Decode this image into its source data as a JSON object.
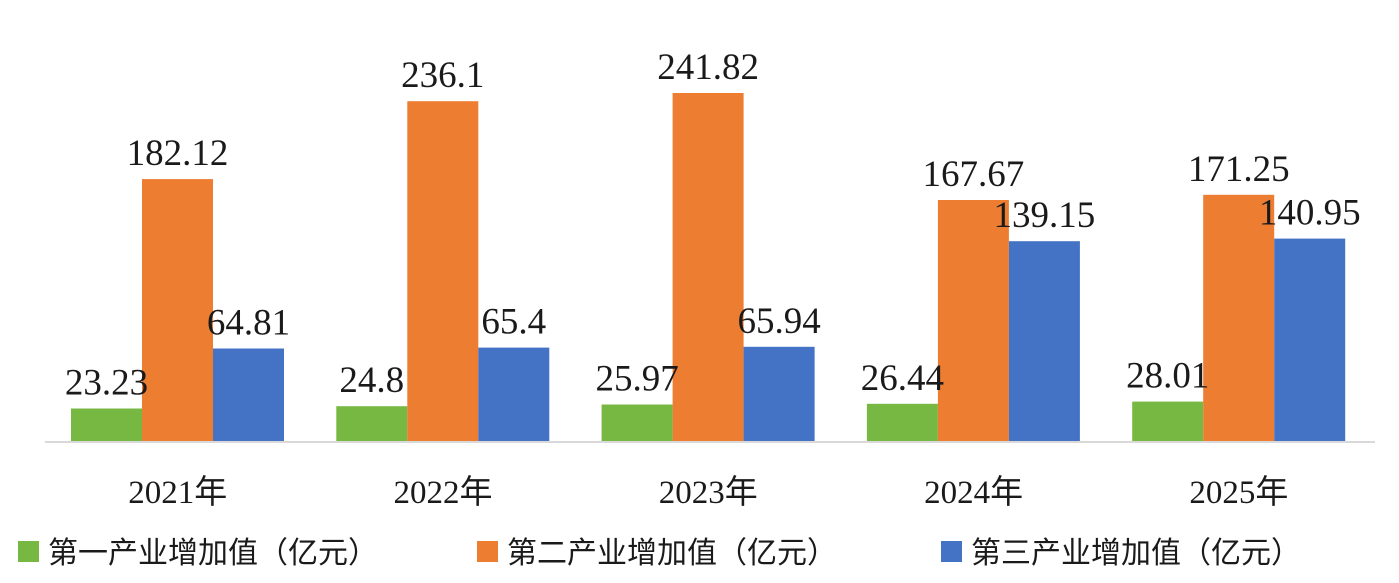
{
  "chart_data": {
    "type": "bar",
    "categories": [
      "2021年",
      "2022年",
      "2023年",
      "2024年",
      "2025年"
    ],
    "series": [
      {
        "name": "第一产业增加值（亿元）",
        "color": "#77b843",
        "values": [
          23.23,
          24.8,
          25.97,
          26.44,
          28.01
        ],
        "labels": [
          "23.23",
          "24.8",
          "25.97",
          "26.44",
          "28.01"
        ]
      },
      {
        "name": "第二产业增加值（亿元）",
        "color": "#ed7d31",
        "values": [
          182.12,
          236.1,
          241.82,
          167.67,
          171.25
        ],
        "labels": [
          "182.12",
          "236.1",
          "241.82",
          "167.67",
          "171.25"
        ]
      },
      {
        "name": "第三产业增加值（亿元）",
        "color": "#4472c4",
        "values": [
          64.81,
          65.4,
          65.94,
          139.15,
          140.95
        ],
        "labels": [
          "64.81",
          "65.4",
          "65.94",
          "139.15",
          "140.95"
        ]
      }
    ],
    "title": "",
    "xlabel": "",
    "ylabel": "",
    "ylim": [
      0,
      300
    ],
    "grid": false,
    "legend": "bottom",
    "axis_color": "#d9d9d9"
  }
}
